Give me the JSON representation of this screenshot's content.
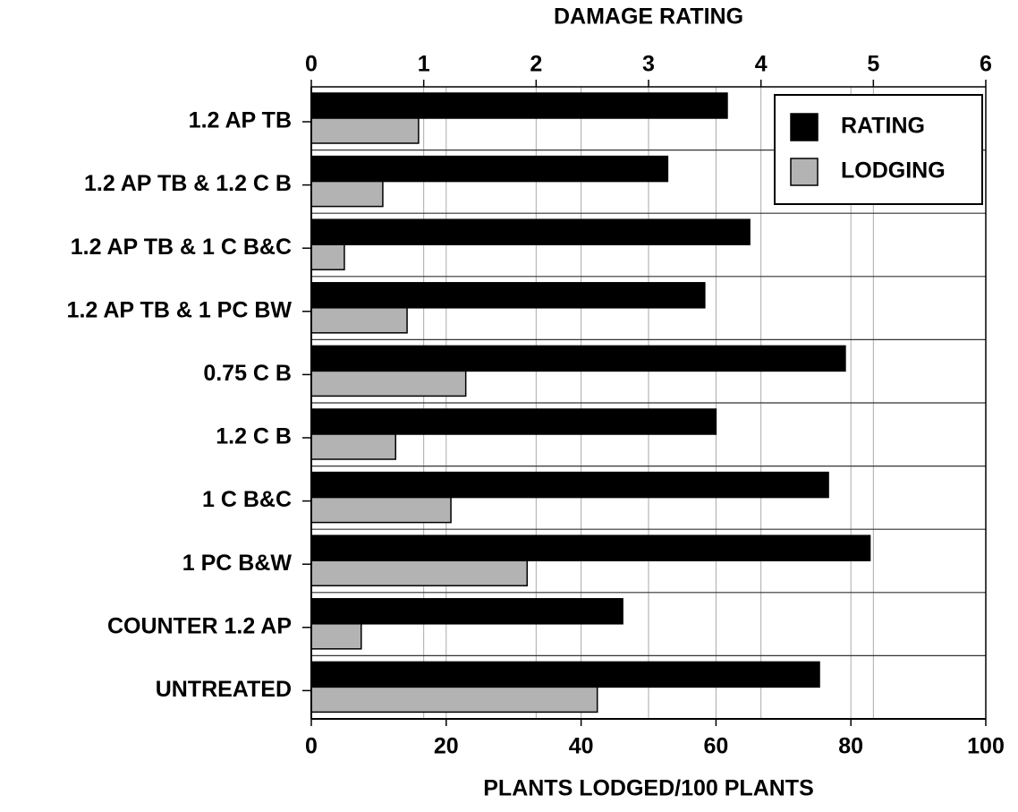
{
  "chart_data": {
    "type": "bar",
    "orientation": "horizontal",
    "x2label": "DAMAGE RATING",
    "xlabel": "PLANTS LODGED/100 PLANTS",
    "categories": [
      "1.2 AP TB",
      "1.2 AP TB & 1.2 C B",
      "1.2 AP TB & 1 C B&C",
      "1.2 AP TB & 1 PC BW",
      "0.75 C B",
      "1.2 C B",
      "1 C B&C",
      "1 PC B&W",
      "COUNTER 1.2 AP",
      "UNTREATED"
    ],
    "series": [
      {
        "name": "RATING",
        "color": "#000000",
        "axis": "x2",
        "values": [
          3.7,
          3.17,
          3.9,
          3.5,
          4.75,
          3.6,
          4.6,
          4.97,
          2.77,
          4.52
        ]
      },
      {
        "name": "LODGING",
        "color": "#b3b3b3",
        "axis": "x",
        "values": [
          15.9,
          10.6,
          4.9,
          14.2,
          22.9,
          12.5,
          20.7,
          32.0,
          7.4,
          42.4
        ]
      }
    ],
    "xlim": [
      0,
      100
    ],
    "xticks": [
      0,
      20,
      40,
      60,
      80,
      100
    ],
    "x2lim": [
      0,
      6
    ],
    "x2ticks": [
      0,
      1,
      2,
      3,
      4,
      5,
      6
    ],
    "grid": true,
    "legend": "upper right"
  }
}
